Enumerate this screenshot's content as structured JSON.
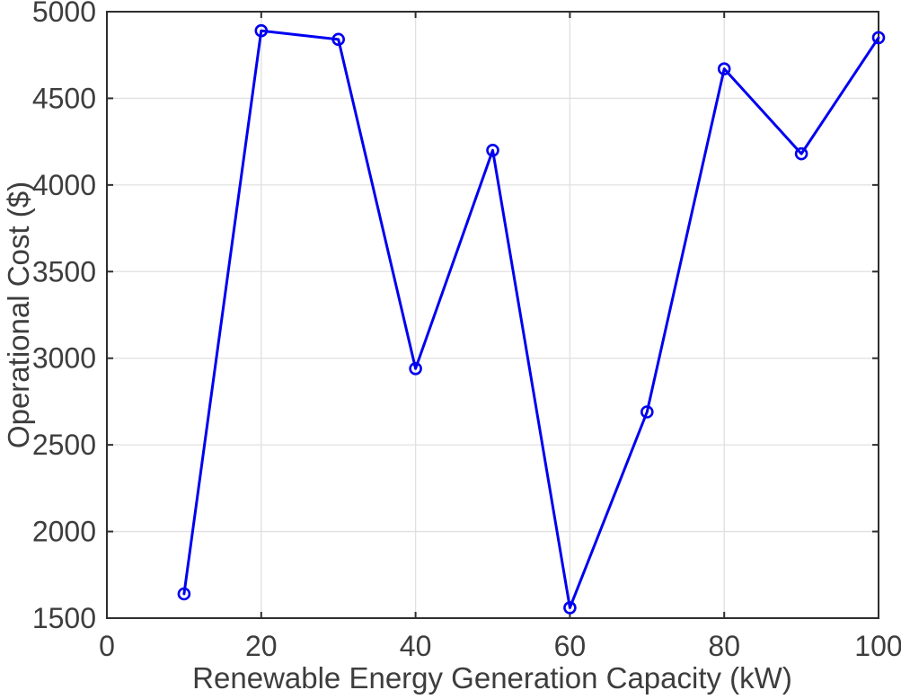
{
  "figure": {
    "background_color": "#ffffff"
  },
  "chart_data": {
    "type": "line",
    "title": "",
    "xlabel": "Renewable Energy Generation Capacity (kW)",
    "ylabel": "Operational Cost ($)",
    "x": [
      10,
      20,
      30,
      40,
      50,
      60,
      70,
      80,
      90,
      100
    ],
    "y": [
      1640,
      4890,
      4840,
      2940,
      4200,
      1560,
      2690,
      4670,
      4180,
      4850
    ],
    "xlim": [
      0,
      100
    ],
    "ylim": [
      1500,
      5000
    ],
    "xticks": [
      0,
      20,
      40,
      60,
      80,
      100
    ],
    "yticks": [
      1500,
      2000,
      2500,
      3000,
      3500,
      4000,
      4500,
      5000
    ],
    "grid": true,
    "legend_position": "none",
    "marker": "open-circle",
    "style": {
      "line_color": "#0000f0",
      "marker_color": "#0000f0",
      "axis_color": "#2e2e2e",
      "grid_color": "#e0e0e0",
      "tick_label_color": "#3d3d3d",
      "label_color": "#3d3d3d"
    }
  }
}
